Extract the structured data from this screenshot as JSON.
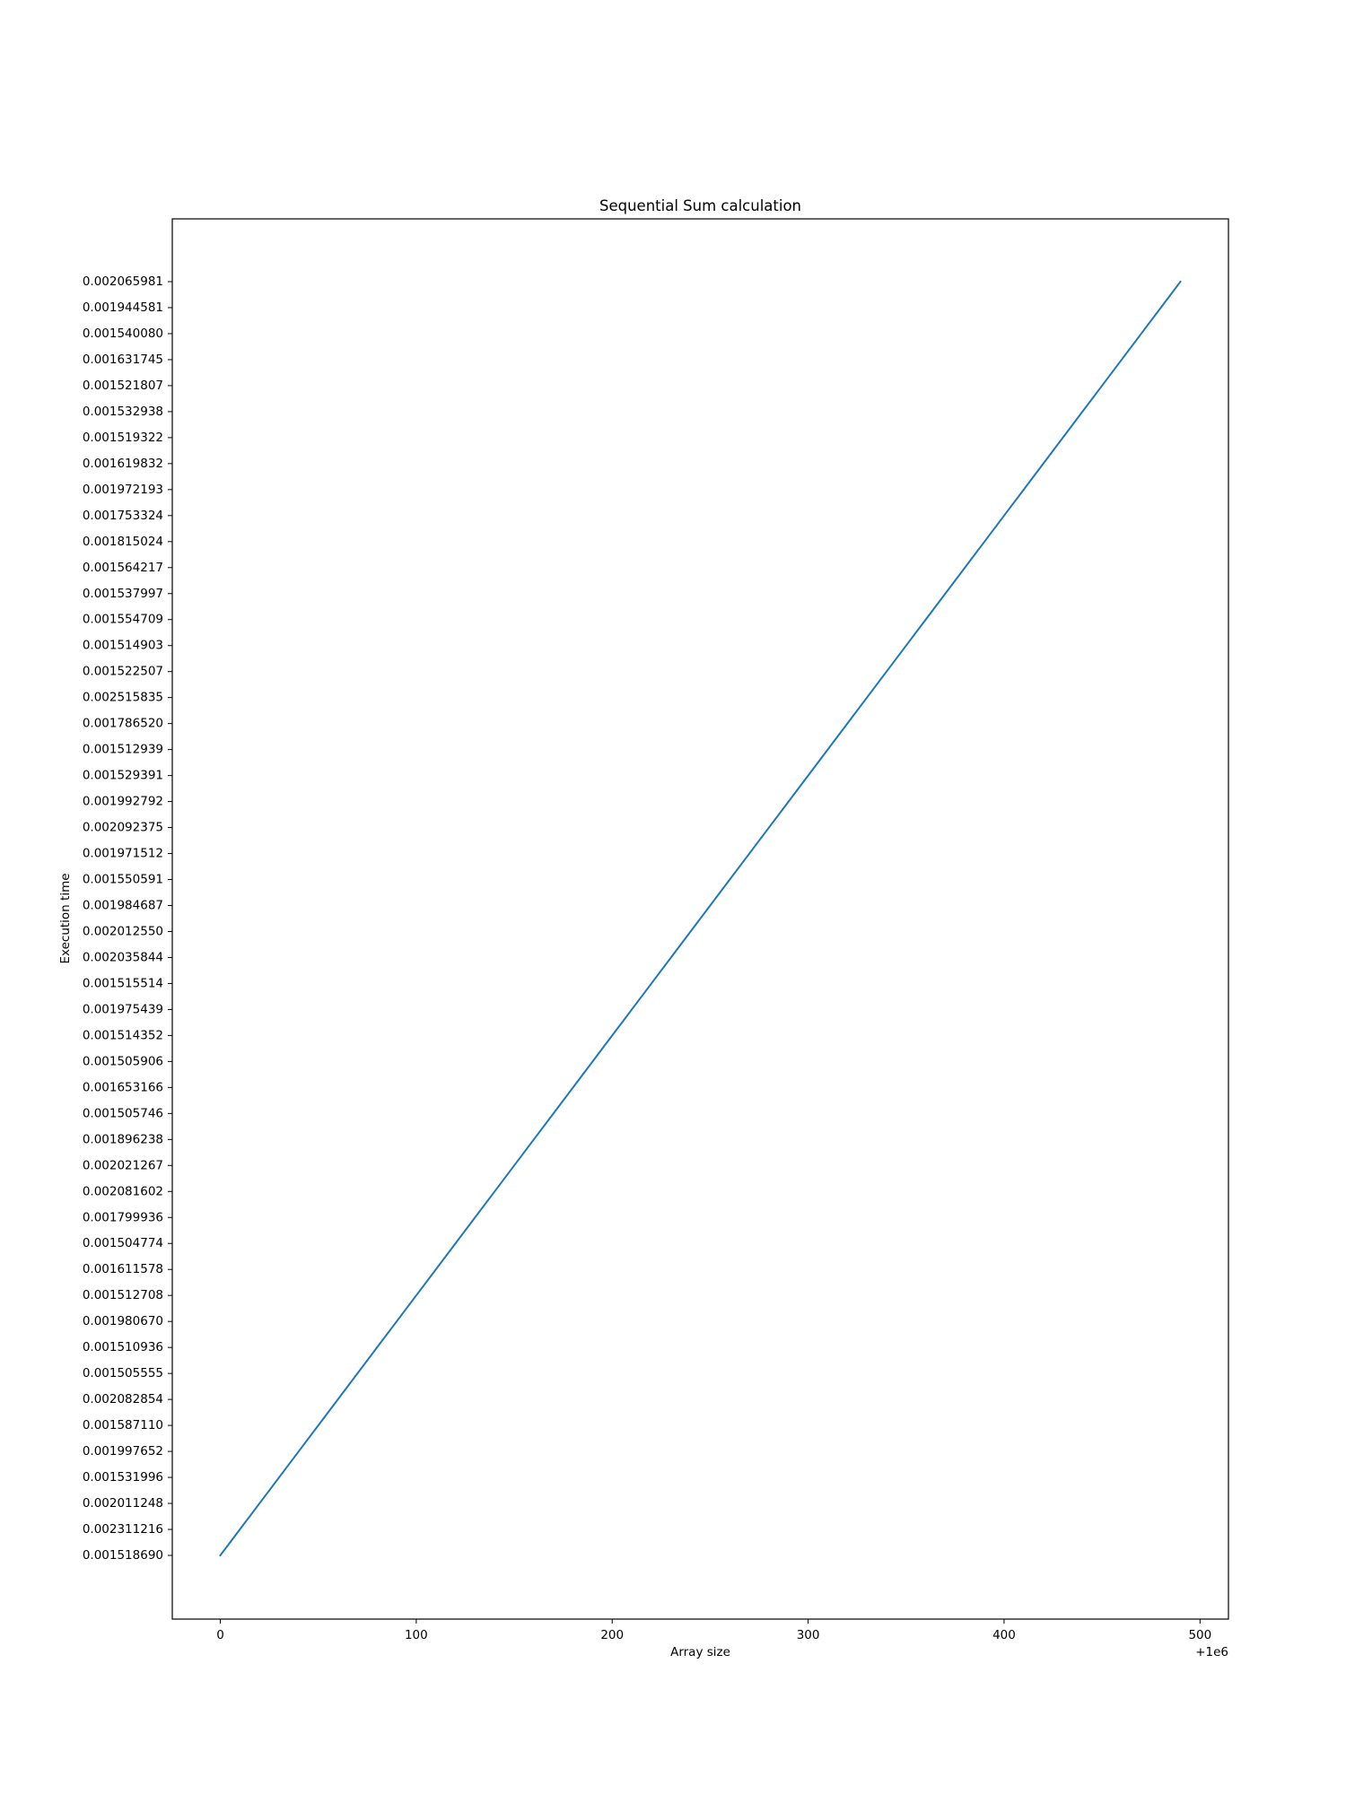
{
  "chart_data": {
    "type": "line",
    "title": "Sequential Sum calculation",
    "xlabel": "Array size",
    "ylabel": "Execution time",
    "x_offset_label": "+1e6",
    "xlim": [
      -24.5,
      514.5
    ],
    "x_ticks": [
      0,
      100,
      200,
      300,
      400,
      500
    ],
    "y_axis_kind": "categorical",
    "grid": false,
    "legend": "none",
    "line_color": "#1f77b4",
    "y_categories": [
      "0.001518690",
      "0.002311216",
      "0.002011248",
      "0.001531996",
      "0.001997652",
      "0.001587110",
      "0.002082854",
      "0.001505555",
      "0.001510936",
      "0.001980670",
      "0.001512708",
      "0.001611578",
      "0.001504774",
      "0.001799936",
      "0.002081602",
      "0.002021267",
      "0.001896238",
      "0.001505746",
      "0.001653166",
      "0.001505906",
      "0.001514352",
      "0.001975439",
      "0.001515514",
      "0.002035844",
      "0.002012550",
      "0.001984687",
      "0.001550591",
      "0.001971512",
      "0.002092375",
      "0.001992792",
      "0.001529391",
      "0.001512939",
      "0.001786520",
      "0.002515835",
      "0.001522507",
      "0.001514903",
      "0.001554709",
      "0.001537997",
      "0.001564217",
      "0.001815024",
      "0.001753324",
      "0.001972193",
      "0.001619832",
      "0.001519322",
      "0.001532938",
      "0.001521807",
      "0.001631745",
      "0.001540080",
      "0.001944581",
      "0.002065981"
    ],
    "series": [
      {
        "x": [
          0,
          10,
          20,
          30,
          40,
          50,
          60,
          70,
          80,
          90,
          100,
          110,
          120,
          130,
          140,
          150,
          160,
          170,
          180,
          190,
          200,
          210,
          220,
          230,
          240,
          250,
          260,
          270,
          280,
          290,
          300,
          310,
          320,
          330,
          340,
          350,
          360,
          370,
          380,
          390,
          400,
          410,
          420,
          430,
          440,
          450,
          460,
          470,
          480,
          490
        ],
        "y": [
          "0.001518690",
          "0.002311216",
          "0.002011248",
          "0.001531996",
          "0.001997652",
          "0.001587110",
          "0.002082854",
          "0.001505555",
          "0.001510936",
          "0.001980670",
          "0.001512708",
          "0.001611578",
          "0.001504774",
          "0.001799936",
          "0.002081602",
          "0.002021267",
          "0.001896238",
          "0.001505746",
          "0.001653166",
          "0.001505906",
          "0.001514352",
          "0.001975439",
          "0.001515514",
          "0.002035844",
          "0.002012550",
          "0.001984687",
          "0.001550591",
          "0.001971512",
          "0.002092375",
          "0.001992792",
          "0.001529391",
          "0.001512939",
          "0.001786520",
          "0.002515835",
          "0.001522507",
          "0.001514903",
          "0.001554709",
          "0.001537997",
          "0.001564217",
          "0.001815024",
          "0.001753324",
          "0.001972193",
          "0.001619832",
          "0.001519322",
          "0.001532938",
          "0.001521807",
          "0.001631745",
          "0.001540080",
          "0.001944581",
          "0.002065981"
        ]
      }
    ]
  }
}
